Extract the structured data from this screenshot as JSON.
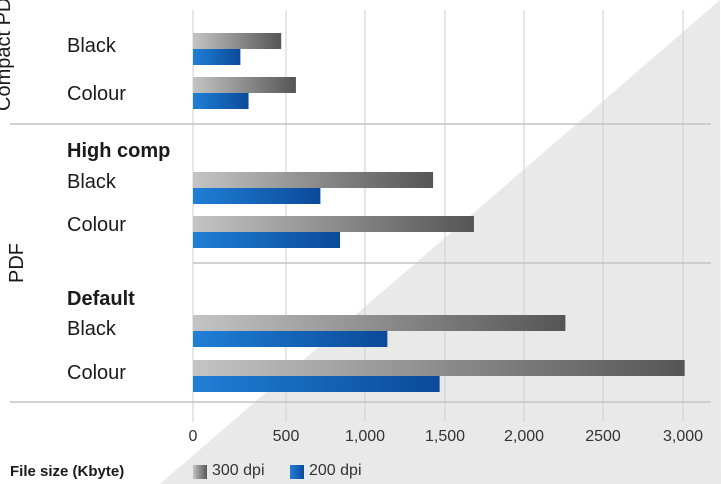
{
  "chart_data": {
    "type": "bar",
    "orientation": "horizontal",
    "xlabel": "File size (Kbyte)",
    "xlim": [
      0,
      3000
    ],
    "xticks": [
      0,
      500,
      1000,
      1500,
      2000,
      2500,
      3000
    ],
    "xtick_labels": [
      "0",
      "500",
      "1,000",
      "1,500",
      "2,000",
      "2500",
      "3,000"
    ],
    "groups": [
      {
        "label": "Compact PDF",
        "subgroups": [
          {
            "heading": "",
            "rows": [
              {
                "label": "Black",
                "values": {
                  "300 dpi": 540,
                  "200 dpi": 290
                }
              },
              {
                "label": "Colour",
                "values": {
                  "300 dpi": 630,
                  "200 dpi": 340
                }
              }
            ]
          }
        ]
      },
      {
        "label": "PDF",
        "subgroups": [
          {
            "heading": "High comp",
            "rows": [
              {
                "label": "Black",
                "values": {
                  "300 dpi": 1470,
                  "200 dpi": 780
                }
              },
              {
                "label": "Colour",
                "values": {
                  "300 dpi": 1720,
                  "200 dpi": 900
                }
              }
            ]
          },
          {
            "heading": "Default",
            "rows": [
              {
                "label": "Black",
                "values": {
                  "300 dpi": 2280,
                  "200 dpi": 1190
                }
              },
              {
                "label": "Colour",
                "values": {
                  "300 dpi": 3010,
                  "200 dpi": 1510
                }
              }
            ]
          }
        ]
      }
    ],
    "series": [
      {
        "name": "300 dpi",
        "color": "#5a5a5a"
      },
      {
        "name": "200 dpi",
        "color": "#0f5aa8"
      }
    ],
    "legend_position": "bottom"
  }
}
